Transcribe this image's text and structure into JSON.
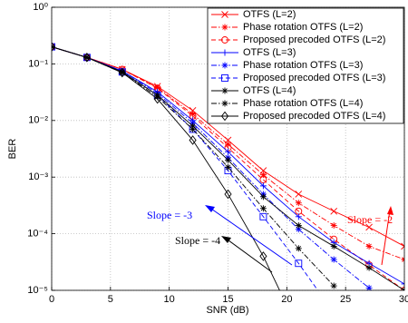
{
  "chart_data": {
    "type": "line",
    "x_label": "SNR (dB)",
    "y_label": "BER",
    "log_y": true,
    "grid": true,
    "legend": "upper right",
    "x": [
      0,
      3,
      6,
      9,
      12,
      15,
      18,
      21,
      24,
      27,
      30
    ],
    "xlim": [
      0,
      30
    ],
    "xticks": [
      0,
      5,
      10,
      15,
      20,
      25,
      30
    ],
    "ylim": [
      1e-05,
      1
    ],
    "yticks": [
      {
        "value": 1e-05,
        "label": "10⁻⁵"
      },
      {
        "value": 0.0001,
        "label": "10⁻⁴"
      },
      {
        "value": 0.001,
        "label": "10⁻³"
      },
      {
        "value": 0.01,
        "label": "10⁻²"
      },
      {
        "value": 0.1,
        "label": "10⁻¹"
      },
      {
        "value": 1,
        "label": "10⁰"
      }
    ],
    "series": [
      {
        "name": "OTFS (L=2)",
        "color": "#ff0000",
        "dash": "solid",
        "marker": "x",
        "values": [
          0.2,
          0.13,
          0.08,
          0.04,
          0.015,
          0.0045,
          0.0013,
          0.0005,
          0.00025,
          0.00013,
          6e-05
        ]
      },
      {
        "name": "Phase rotation OTFS (L=2)",
        "color": "#ff0000",
        "dash": "dashdot",
        "marker": "*",
        "values": [
          0.2,
          0.13,
          0.08,
          0.038,
          0.013,
          0.0038,
          0.0011,
          0.00035,
          0.00014,
          6e-05,
          3.5e-05
        ]
      },
      {
        "name": "Proposed precoded OTFS (L=2)",
        "color": "#ff0000",
        "dash": "dashed",
        "marker": "o",
        "values": [
          0.2,
          0.13,
          0.08,
          0.037,
          0.012,
          0.0033,
          0.0009,
          0.00025,
          8e-05,
          2.8e-05,
          1e-05
        ]
      },
      {
        "name": "OTFS (L=3)",
        "color": "#0000ff",
        "dash": "solid",
        "marker": "+",
        "values": [
          0.2,
          0.13,
          0.075,
          0.032,
          0.01,
          0.0028,
          0.0007,
          0.0002,
          7e-05,
          3e-05,
          1.3e-05
        ]
      },
      {
        "name": "Phase rotation OTFS (L=3)",
        "color": "#0000ff",
        "dash": "dashdot",
        "marker": "*",
        "values": [
          0.2,
          0.13,
          0.075,
          0.03,
          0.009,
          0.0022,
          0.0005,
          0.00012,
          3.5e-05,
          1.1e-05,
          null
        ]
      },
      {
        "name": "Proposed precoded OTFS (L=3)",
        "color": "#0000ff",
        "dash": "dashed",
        "marker": "s",
        "values": [
          0.2,
          0.13,
          0.072,
          0.028,
          0.007,
          0.0013,
          0.0002,
          3e-05,
          4e-06,
          null,
          null
        ]
      },
      {
        "name": "OTFS (L=4)",
        "color": "#000000",
        "dash": "solid",
        "marker": "*",
        "values": [
          0.2,
          0.13,
          0.072,
          0.028,
          0.008,
          0.002,
          0.00045,
          0.00014,
          6e-05,
          2.5e-05,
          1e-05
        ]
      },
      {
        "name": "Phase rotation OTFS (L=4)",
        "color": "#000000",
        "dash": "dashdot",
        "marker": "*",
        "values": [
          0.2,
          0.13,
          0.07,
          0.026,
          0.007,
          0.0015,
          0.00028,
          5.5e-05,
          1.2e-05,
          null,
          null
        ]
      },
      {
        "name": "Proposed precoded OTFS (L=4)",
        "color": "#000000",
        "dash": "solid",
        "marker": "d",
        "values": [
          0.2,
          0.13,
          0.07,
          0.024,
          0.0045,
          0.0005,
          4e-05,
          2e-06,
          null,
          null,
          null
        ]
      }
    ],
    "annotations": [
      {
        "text": "Slope = -3",
        "color": "#0000ff"
      },
      {
        "text": "Slope = -4",
        "color": "#000000"
      },
      {
        "text": "Slope = -2",
        "color": "#ff0000"
      }
    ]
  }
}
